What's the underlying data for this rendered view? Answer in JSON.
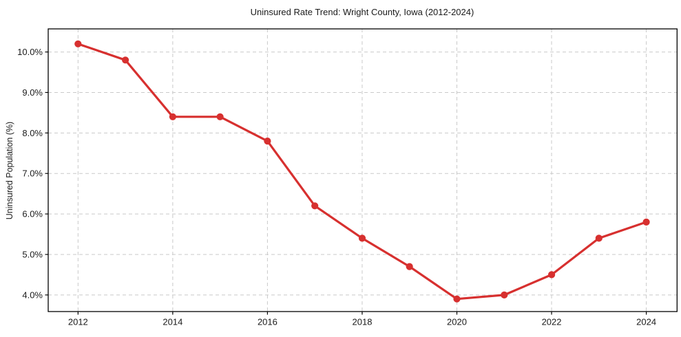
{
  "figure": {
    "background": "#ffffff"
  },
  "chart_data": {
    "type": "line",
    "title": "Uninsured Rate Trend: Wright County, Iowa (2012-2024)",
    "xlabel": "",
    "ylabel": "Uninsured Population (%)",
    "x": [
      2012,
      2013,
      2014,
      2015,
      2016,
      2017,
      2018,
      2019,
      2020,
      2021,
      2022,
      2023,
      2024
    ],
    "values": [
      10.2,
      9.8,
      8.4,
      8.4,
      7.8,
      6.2,
      5.4,
      4.7,
      3.9,
      4.0,
      4.5,
      5.4,
      5.8
    ],
    "xlim": [
      2011.37,
      2024.65
    ],
    "ylim": [
      3.59,
      10.57
    ],
    "x_ticks": [
      2012,
      2014,
      2016,
      2018,
      2020,
      2022,
      2024
    ],
    "x_tick_labels": [
      "2012",
      "2014",
      "2016",
      "2018",
      "2020",
      "2022",
      "2024"
    ],
    "y_ticks": [
      4.0,
      5.0,
      6.0,
      7.0,
      8.0,
      9.0,
      10.0
    ],
    "y_tick_labels": [
      "4.0%",
      "5.0%",
      "6.0%",
      "7.0%",
      "8.0%",
      "9.0%",
      "10.0%"
    ],
    "grid": {
      "visible": true,
      "style": "dashed",
      "color": "#c9c9c9"
    },
    "legend": {
      "visible": false
    },
    "style": {
      "line_color": "#d7302f",
      "marker": "circle",
      "marker_radius": 5.1,
      "line_width": 3.2,
      "spine_color": "#000000",
      "tick_color": "#000000",
      "text_color": "#1a1a1a",
      "background": "#ffffff"
    }
  }
}
